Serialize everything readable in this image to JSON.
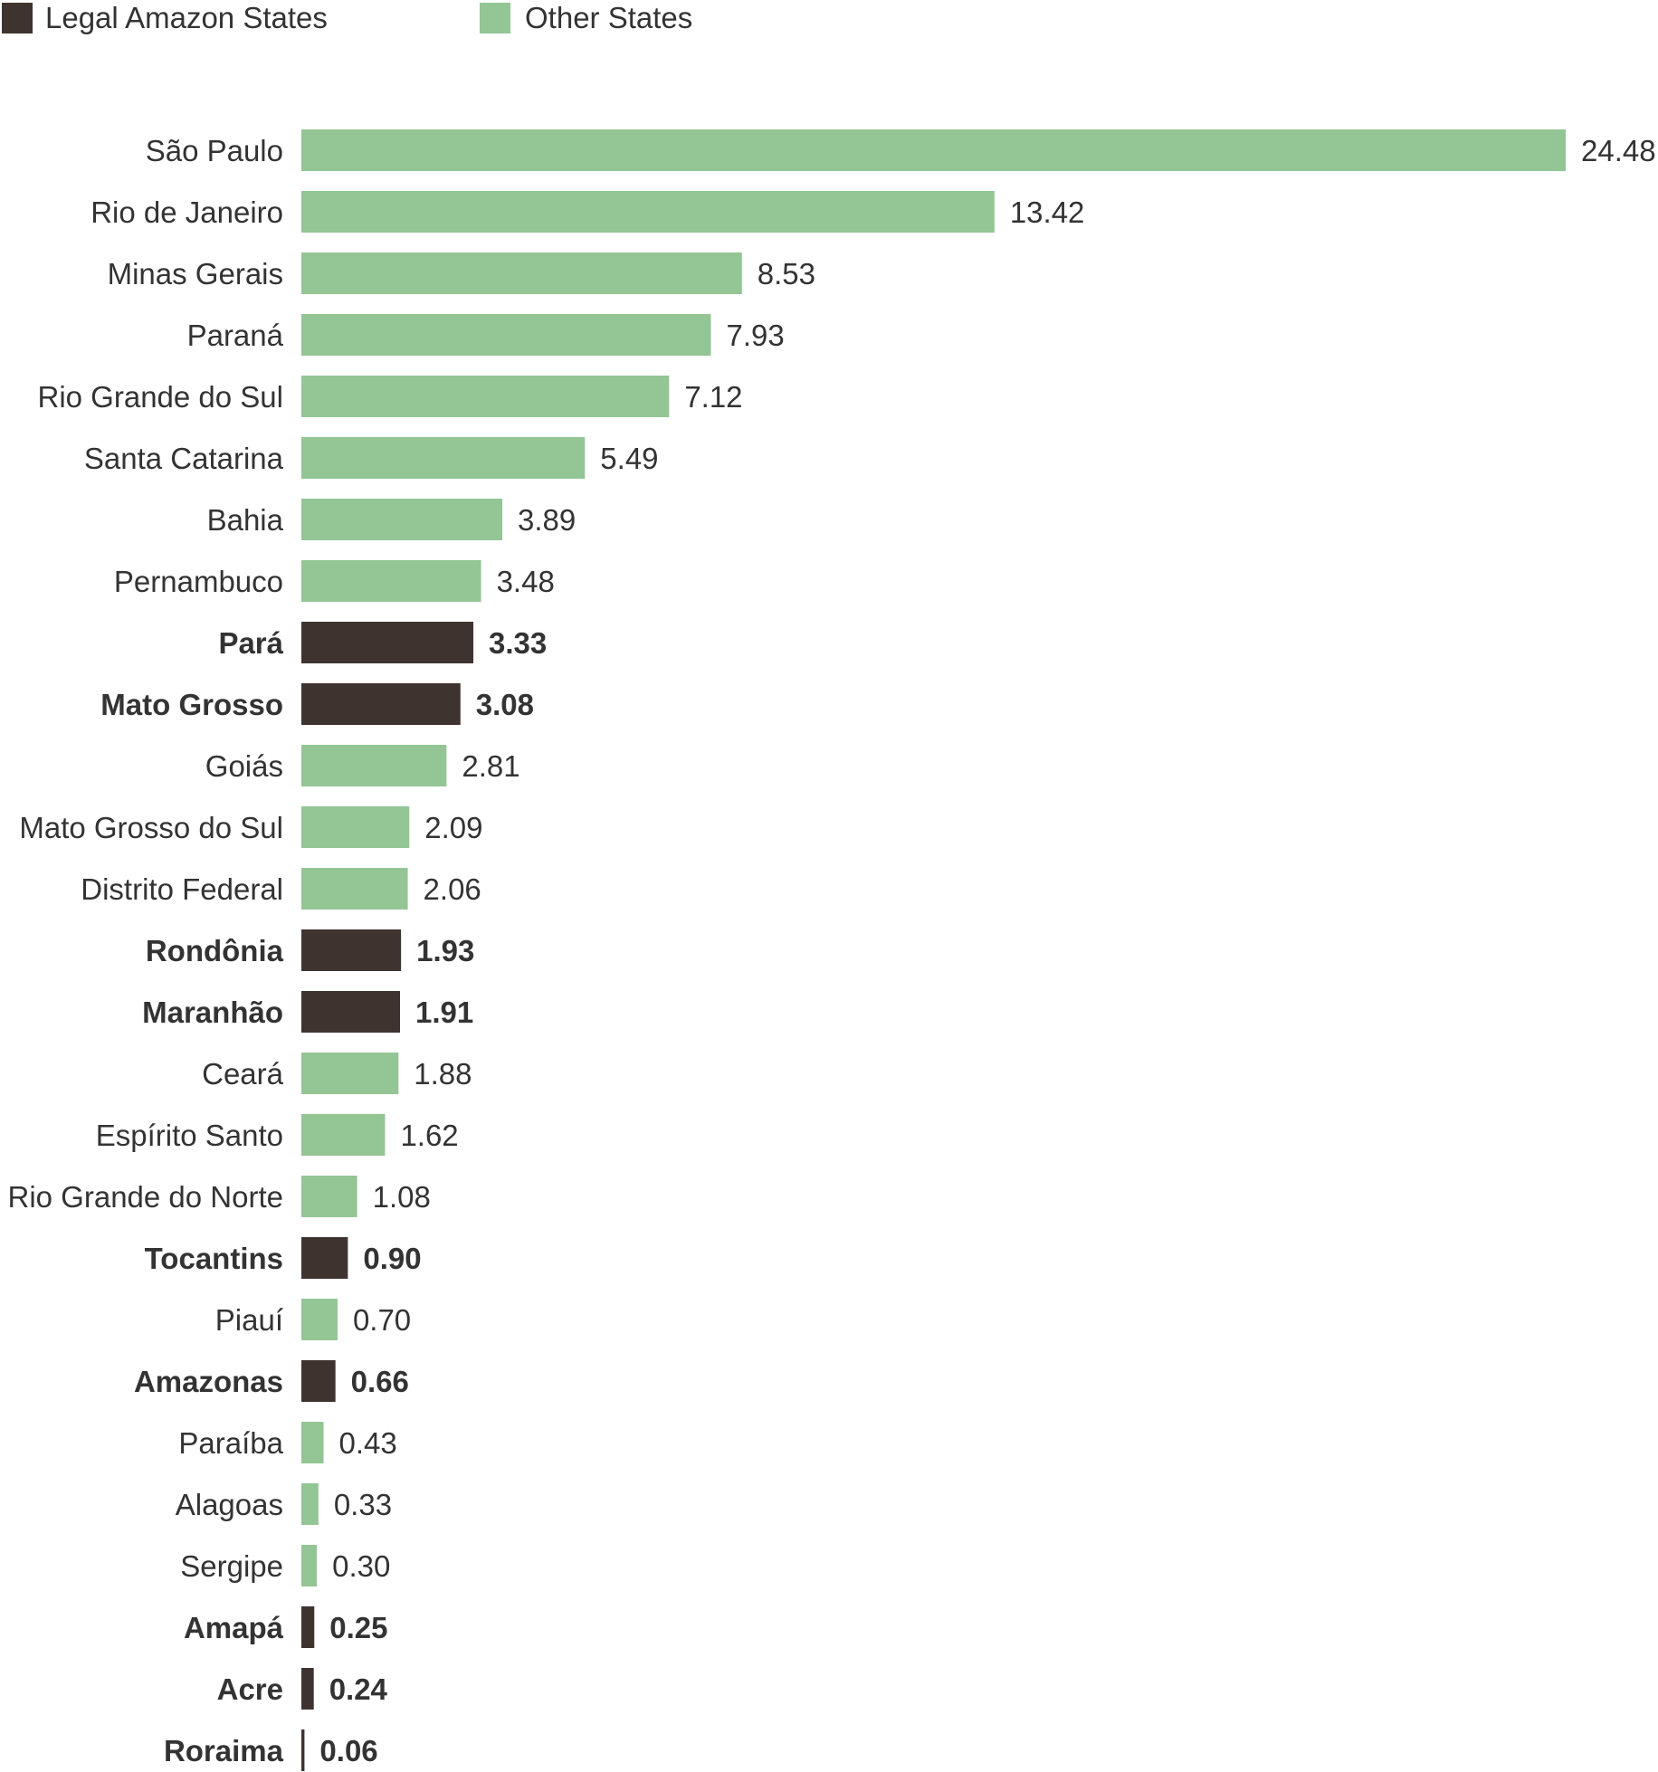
{
  "chart_data": {
    "type": "bar",
    "orientation": "horizontal",
    "title": "",
    "xlabel": "",
    "ylabel": "",
    "grid": false,
    "legend_position": "top-left",
    "legend": [
      {
        "name": "Legal Amazon States",
        "color": "#3f3330"
      },
      {
        "name": "Other States",
        "color": "#93c595"
      }
    ],
    "categories": [
      "São Paulo",
      "Rio de Janeiro",
      "Minas Gerais",
      "Paraná",
      "Rio Grande do Sul",
      "Santa Catarina",
      "Bahia",
      "Pernambuco",
      "Pará",
      "Mato Grosso",
      "Goiás",
      "Mato Grosso do Sul",
      "Distrito Federal",
      "Rondônia",
      "Maranhão",
      "Ceará",
      "Espírito Santo",
      "Rio Grande do Norte",
      "Tocantins",
      "Piauí",
      "Amazonas",
      "Paraíba",
      "Alagoas",
      "Sergipe",
      "Amapá",
      "Acre",
      "Roraima"
    ],
    "values": [
      24.48,
      13.42,
      8.53,
      7.93,
      7.12,
      5.49,
      3.89,
      3.48,
      3.33,
      3.08,
      2.81,
      2.09,
      2.06,
      1.93,
      1.91,
      1.88,
      1.62,
      1.08,
      0.9,
      0.7,
      0.66,
      0.43,
      0.33,
      0.3,
      0.25,
      0.24,
      0.06
    ],
    "value_labels": [
      "24.48",
      "13.42",
      "8.53",
      "7.93",
      "7.12",
      "5.49",
      "3.89",
      "3.48",
      "3.33",
      "3.08",
      "2.81",
      "2.09",
      "2.06",
      "1.93",
      "1.91",
      "1.88",
      "1.62",
      "1.08",
      "0.90",
      "0.70",
      "0.66",
      "0.43",
      "0.33",
      "0.30",
      "0.25",
      "0.24",
      "0.06"
    ],
    "group": [
      "other",
      "other",
      "other",
      "other",
      "other",
      "other",
      "other",
      "other",
      "amazon",
      "amazon",
      "other",
      "other",
      "other",
      "amazon",
      "amazon",
      "other",
      "other",
      "other",
      "amazon",
      "other",
      "amazon",
      "other",
      "other",
      "other",
      "amazon",
      "amazon",
      "amazon"
    ],
    "xlim": [
      0,
      24.48
    ]
  }
}
